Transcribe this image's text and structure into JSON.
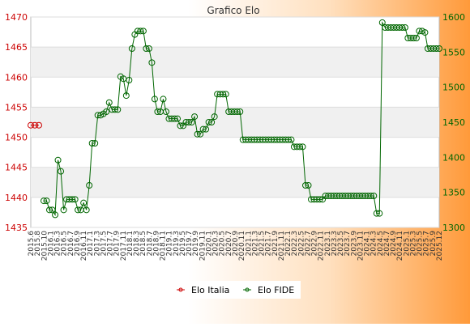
{
  "chart_data": {
    "type": "line",
    "title": "Grafico Elo",
    "legend_position": "bottom-center",
    "grid": true,
    "y_left": {
      "min": 1435,
      "max": 1470,
      "ticks": [
        1435,
        1440,
        1445,
        1450,
        1455,
        1460,
        1465,
        1470
      ],
      "color": "#cc0000"
    },
    "y_right": {
      "min": 1300,
      "max": 1600,
      "ticks": [
        1300,
        1350,
        1400,
        1450,
        1500,
        1550,
        1600
      ],
      "color": "#006600"
    },
    "x_tick_labels": [
      "2015.6",
      "2015.8",
      "2015.10",
      "2016.1",
      "2016.3",
      "2016.5",
      "2016.7",
      "2016.9",
      "2016.11",
      "2017.1",
      "2017.3",
      "2017.5",
      "2017.7",
      "2017.9",
      "2017.11",
      "2018.1",
      "2018.3",
      "2018.5",
      "2018.7",
      "2018.9",
      "2018.11",
      "2019.1",
      "2019.3",
      "2019.5",
      "2019.7",
      "2019.9",
      "2019.11",
      "2020.1",
      "2020.3",
      "2020.5",
      "2020.7",
      "2020.9",
      "2020.11",
      "2021.1",
      "2021.3",
      "2021.5",
      "2021.7",
      "2021.9",
      "2021.11",
      "2022.1",
      "2022.3",
      "2022.5",
      "2022.7",
      "2022.9",
      "2022.11",
      "2023.1",
      "2023.3",
      "2023.5",
      "2023.7",
      "2023.9",
      "2023.11",
      "2024.1",
      "2024.3",
      "2024.5",
      "2024.7",
      "2024.9",
      "2024.11",
      "2025.1",
      "2025.3",
      "2025.5",
      "2025.7",
      "2025.9",
      "2025.12"
    ],
    "series": [
      {
        "name": "Elo Italia",
        "axis": "left",
        "color": "#cc0000",
        "values": [
          1452,
          1452,
          1452
        ]
      },
      {
        "name": "Elo FIDE",
        "axis": "right",
        "color": "#006600",
        "values": [
          1338,
          1338,
          1325,
          1325,
          1318,
          1396,
          1380,
          1325,
          1340,
          1340,
          1340,
          1340,
          1325,
          1325,
          1335,
          1325,
          1360,
          1420,
          1420,
          1460,
          1460,
          1462,
          1465,
          1478,
          1468,
          1468,
          1468,
          1515,
          1512,
          1488,
          1510,
          1555,
          1575,
          1580,
          1580,
          1580,
          1555,
          1555,
          1535,
          1483,
          1465,
          1465,
          1483,
          1465,
          1455,
          1455,
          1455,
          1455,
          1445,
          1445,
          1450,
          1450,
          1450,
          1458,
          1433,
          1433,
          1440,
          1440,
          1450,
          1450,
          1458,
          1490,
          1490,
          1490,
          1490,
          1465,
          1465,
          1465,
          1465,
          1465,
          1425,
          1425,
          1425,
          1425,
          1425,
          1425,
          1425,
          1425,
          1425,
          1425,
          1425,
          1425,
          1425,
          1425,
          1425,
          1425,
          1425,
          1425,
          1415,
          1415,
          1415,
          1415,
          1360,
          1360,
          1340,
          1340,
          1340,
          1340,
          1340,
          1345,
          1345,
          1345,
          1345,
          1345,
          1345,
          1345,
          1345,
          1345,
          1345,
          1345,
          1345,
          1345,
          1345,
          1345,
          1345,
          1345,
          1345,
          1320,
          1320,
          1592,
          1585,
          1585,
          1585,
          1585,
          1585,
          1585,
          1585,
          1585,
          1570,
          1570,
          1570,
          1570,
          1580,
          1580,
          1578,
          1555,
          1555,
          1555,
          1555,
          1555
        ]
      }
    ]
  }
}
